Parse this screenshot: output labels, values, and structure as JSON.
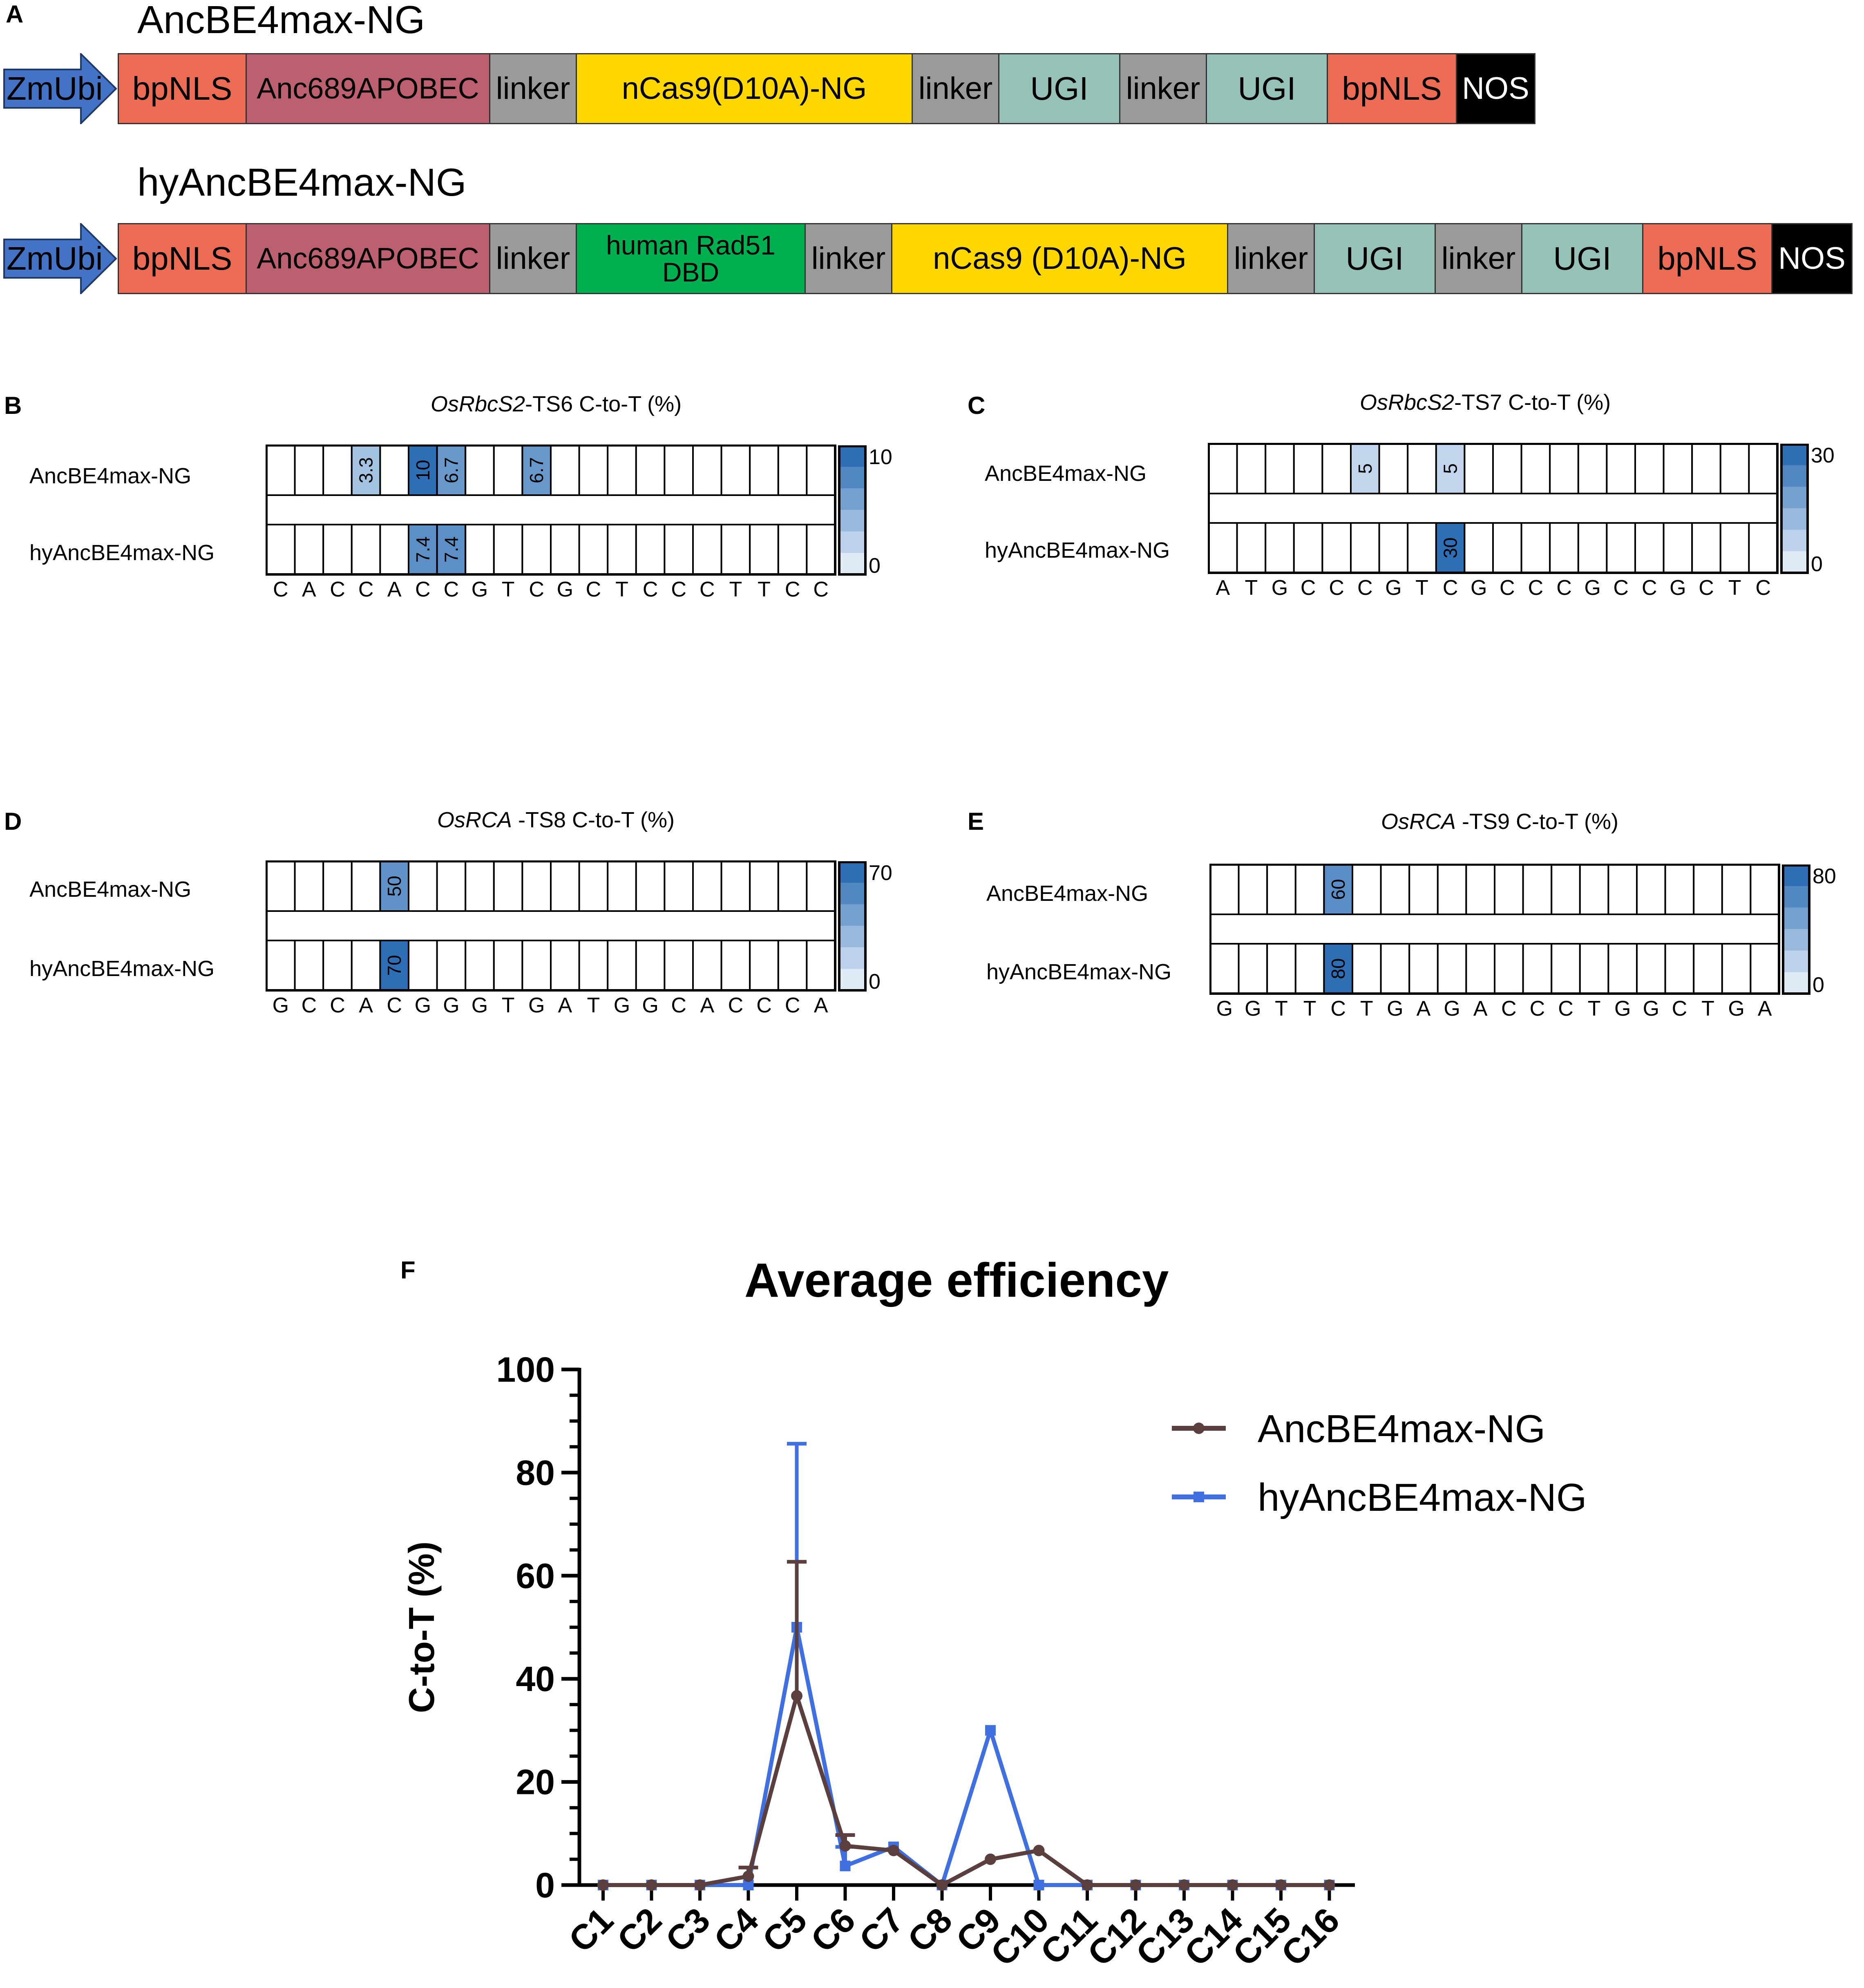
{
  "panel_a": {
    "label": "A",
    "constructs": [
      {
        "title": "AncBE4max-NG",
        "promoter": "ZmUbi",
        "segments": [
          {
            "text": "bpNLS",
            "color": "#EC6B55"
          },
          {
            "text": "Anc689APOBEC",
            "color": "#BC5F6E"
          },
          {
            "text": "linker",
            "color": "#9A9A9A"
          },
          {
            "text": "nCas9(D10A)-NG",
            "color": "#FFD700"
          },
          {
            "text": "linker",
            "color": "#9A9A9A"
          },
          {
            "text": "UGI",
            "color": "#95C1B8"
          },
          {
            "text": "linker",
            "color": "#9A9A9A"
          },
          {
            "text": "UGI",
            "color": "#95C1B8"
          },
          {
            "text": "bpNLS",
            "color": "#EC6B55"
          },
          {
            "text": "NOS",
            "color": "#000000",
            "text_color": "#FFFFFF"
          }
        ]
      },
      {
        "title": "hyAncBE4max-NG",
        "promoter": "ZmUbi",
        "segments": [
          {
            "text": "bpNLS",
            "color": "#EC6B55"
          },
          {
            "text": "Anc689APOBEC",
            "color": "#BC5F6E"
          },
          {
            "text": "linker",
            "color": "#9A9A9A"
          },
          {
            "text": "human Rad51 DBD",
            "color": "#00B050"
          },
          {
            "text": "linker",
            "color": "#9A9A9A"
          },
          {
            "text": "nCas9 (D10A)-NG",
            "color": "#FFD700"
          },
          {
            "text": "linker",
            "color": "#9A9A9A"
          },
          {
            "text": "UGI",
            "color": "#95C1B8"
          },
          {
            "text": "linker",
            "color": "#9A9A9A"
          },
          {
            "text": "UGI",
            "color": "#95C1B8"
          },
          {
            "text": "bpNLS",
            "color": "#EC6B55"
          },
          {
            "text": "NOS",
            "color": "#000000",
            "text_color": "#FFFFFF"
          }
        ]
      }
    ]
  },
  "heatmaps": [
    {
      "label": "B",
      "gene": "OsRbcS2",
      "title_suffix": "-TS6 C-to-T (%)",
      "rows": [
        "AncBE4max-NG",
        "hyAncBE4max-NG"
      ],
      "sequence": [
        "C",
        "A",
        "C",
        "C",
        "A",
        "C",
        "C",
        "G",
        "T",
        "C",
        "G",
        "C",
        "T",
        "C",
        "C",
        "C",
        "T",
        "T",
        "C",
        "C"
      ],
      "scale": {
        "max": 10,
        "min": 0,
        "max_label": "10",
        "min_label": "0"
      },
      "values_row1": [
        null,
        null,
        null,
        3.3,
        null,
        10,
        6.7,
        null,
        null,
        6.7,
        null,
        null,
        null,
        null,
        null,
        null,
        null,
        null,
        null,
        null
      ],
      "labels_row1": [
        "",
        "",
        "",
        "3.3",
        "",
        "10",
        "6.7",
        "",
        "",
        "6.7",
        "",
        "",
        "",
        "",
        "",
        "",
        "",
        "",
        "",
        ""
      ],
      "values_row2": [
        null,
        null,
        null,
        null,
        null,
        7.4,
        7.4,
        null,
        null,
        null,
        null,
        null,
        null,
        null,
        null,
        null,
        null,
        null,
        null,
        null
      ],
      "labels_row2": [
        "",
        "",
        "",
        "",
        "",
        "7.4",
        "7.4",
        "",
        "",
        "",
        "",
        "",
        "",
        "",
        "",
        "",
        "",
        "",
        "",
        ""
      ]
    },
    {
      "label": "C",
      "gene": "OsRbcS2",
      "title_suffix": "-TS7 C-to-T (%)",
      "rows": [
        "AncBE4max-NG",
        "hyAncBE4max-NG"
      ],
      "sequence": [
        "A",
        "T",
        "G",
        "C",
        "C",
        "C",
        "G",
        "T",
        "C",
        "G",
        "C",
        "C",
        "C",
        "G",
        "C",
        "C",
        "G",
        "C",
        "T",
        "C"
      ],
      "scale": {
        "max": 30,
        "min": 0,
        "max_label": "30",
        "min_label": "0"
      },
      "values_row1": [
        null,
        null,
        null,
        null,
        null,
        5,
        null,
        null,
        5,
        null,
        null,
        null,
        null,
        null,
        null,
        null,
        null,
        null,
        null,
        null
      ],
      "labels_row1": [
        "",
        "",
        "",
        "",
        "",
        "5",
        "",
        "",
        "5",
        "",
        "",
        "",
        "",
        "",
        "",
        "",
        "",
        "",
        "",
        ""
      ],
      "values_row2": [
        null,
        null,
        null,
        null,
        null,
        null,
        null,
        null,
        30,
        null,
        null,
        null,
        null,
        null,
        null,
        null,
        null,
        null,
        null,
        null
      ],
      "labels_row2": [
        "",
        "",
        "",
        "",
        "",
        "",
        "",
        "",
        "30",
        "",
        "",
        "",
        "",
        "",
        "",
        "",
        "",
        "",
        "",
        ""
      ]
    },
    {
      "label": "D",
      "gene": "OsRCA",
      "title_suffix": " -TS8  C-to-T (%)",
      "rows": [
        "AncBE4max-NG",
        "hyAncBE4max-NG"
      ],
      "sequence": [
        "G",
        "C",
        "C",
        "A",
        "C",
        "G",
        "G",
        "G",
        "T",
        "G",
        "A",
        "T",
        "G",
        "G",
        "C",
        "A",
        "C",
        "C",
        "C",
        "A"
      ],
      "scale": {
        "max": 70,
        "min": 0,
        "max_label": "70",
        "min_label": "0"
      },
      "values_row1": [
        null,
        null,
        null,
        null,
        50,
        null,
        null,
        null,
        null,
        null,
        null,
        null,
        null,
        null,
        null,
        null,
        null,
        null,
        null,
        null
      ],
      "labels_row1": [
        "",
        "",
        "",
        "",
        "50",
        "",
        "",
        "",
        "",
        "",
        "",
        "",
        "",
        "",
        "",
        "",
        "",
        "",
        "",
        ""
      ],
      "values_row2": [
        null,
        null,
        null,
        null,
        70,
        null,
        null,
        null,
        null,
        null,
        null,
        null,
        null,
        null,
        null,
        null,
        null,
        null,
        null,
        null
      ],
      "labels_row2": [
        "",
        "",
        "",
        "",
        "70",
        "",
        "",
        "",
        "",
        "",
        "",
        "",
        "",
        "",
        "",
        "",
        "",
        "",
        "",
        ""
      ]
    },
    {
      "label": "E",
      "gene": "OsRCA",
      "title_suffix": " -TS9  C-to-T (%)",
      "rows": [
        "AncBE4max-NG",
        "hyAncBE4max-NG"
      ],
      "sequence": [
        "G",
        "G",
        "T",
        "T",
        "C",
        "T",
        "G",
        "A",
        "G",
        "A",
        "C",
        "C",
        "C",
        "T",
        "G",
        "G",
        "C",
        "T",
        "G",
        "A"
      ],
      "scale": {
        "max": 80,
        "min": 0,
        "max_label": "80",
        "min_label": "0"
      },
      "values_row1": [
        null,
        null,
        null,
        null,
        60,
        null,
        null,
        null,
        null,
        null,
        null,
        null,
        null,
        null,
        null,
        null,
        null,
        null,
        null,
        null
      ],
      "labels_row1": [
        "",
        "",
        "",
        "",
        "60",
        "",
        "",
        "",
        "",
        "",
        "",
        "",
        "",
        "",
        "",
        "",
        "",
        "",
        "",
        ""
      ],
      "values_row2": [
        null,
        null,
        null,
        null,
        80,
        null,
        null,
        null,
        null,
        null,
        null,
        null,
        null,
        null,
        null,
        null,
        null,
        null,
        null,
        null
      ],
      "labels_row2": [
        "",
        "",
        "",
        "",
        "80",
        "",
        "",
        "",
        "",
        "",
        "",
        "",
        "",
        "",
        "",
        "",
        "",
        "",
        "",
        ""
      ]
    }
  ],
  "chart_data": {
    "type": "line",
    "panel_label": "F",
    "title": "Average efficiency",
    "xlabel": "",
    "ylabel": "C-to-T (%)",
    "ylim": [
      0,
      100
    ],
    "yticks": [
      "0",
      "20",
      "40",
      "60",
      "80",
      "100"
    ],
    "categories": [
      "C1",
      "C2",
      "C3",
      "C4",
      "C5",
      "C6",
      "C7",
      "C8",
      "C9",
      "C10",
      "C11",
      "C12",
      "C13",
      "C14",
      "C15",
      "C16"
    ],
    "legend_position": "top-right",
    "series": [
      {
        "name": "AncBE4max-NG",
        "color": "#5B3F3F",
        "marker": "circle",
        "values": [
          0,
          0,
          0,
          1.7,
          36.7,
          7.6,
          6.7,
          0,
          5,
          6.7,
          0,
          0,
          0,
          0,
          0,
          0
        ],
        "errors": [
          0,
          0,
          0,
          1.7,
          26,
          2.1,
          0,
          0,
          0,
          0,
          0,
          0,
          0,
          0,
          0,
          0
        ]
      },
      {
        "name": "hyAncBE4max-NG",
        "color": "#3F6FE0",
        "marker": "square",
        "values": [
          0,
          0,
          0,
          0,
          50,
          3.7,
          7.4,
          0,
          30,
          0,
          0,
          0,
          0,
          0,
          0,
          0
        ],
        "errors": [
          0,
          0,
          0,
          0,
          35.6,
          3.7,
          0,
          0,
          0,
          0,
          0,
          0,
          0,
          0,
          0,
          0
        ]
      }
    ]
  }
}
